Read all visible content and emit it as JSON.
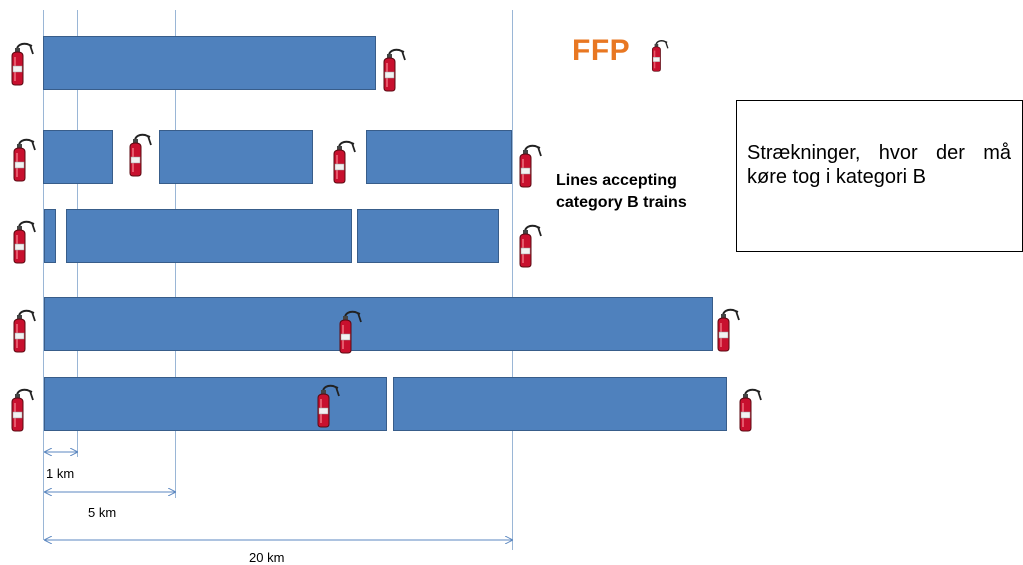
{
  "title": "FFP",
  "lines_label": [
    "Lines accepting",
    "category B trains"
  ],
  "note": "Strækninger, hvor der må køre tog i kategori B",
  "scales": [
    "1 km",
    "5 km",
    "20 km"
  ],
  "colors": {
    "bar": "#4f81bd",
    "bar_border": "#385d8a",
    "title": "#e87722",
    "guide": "#9ab6d6"
  },
  "icon": "fire-extinguisher-icon"
}
